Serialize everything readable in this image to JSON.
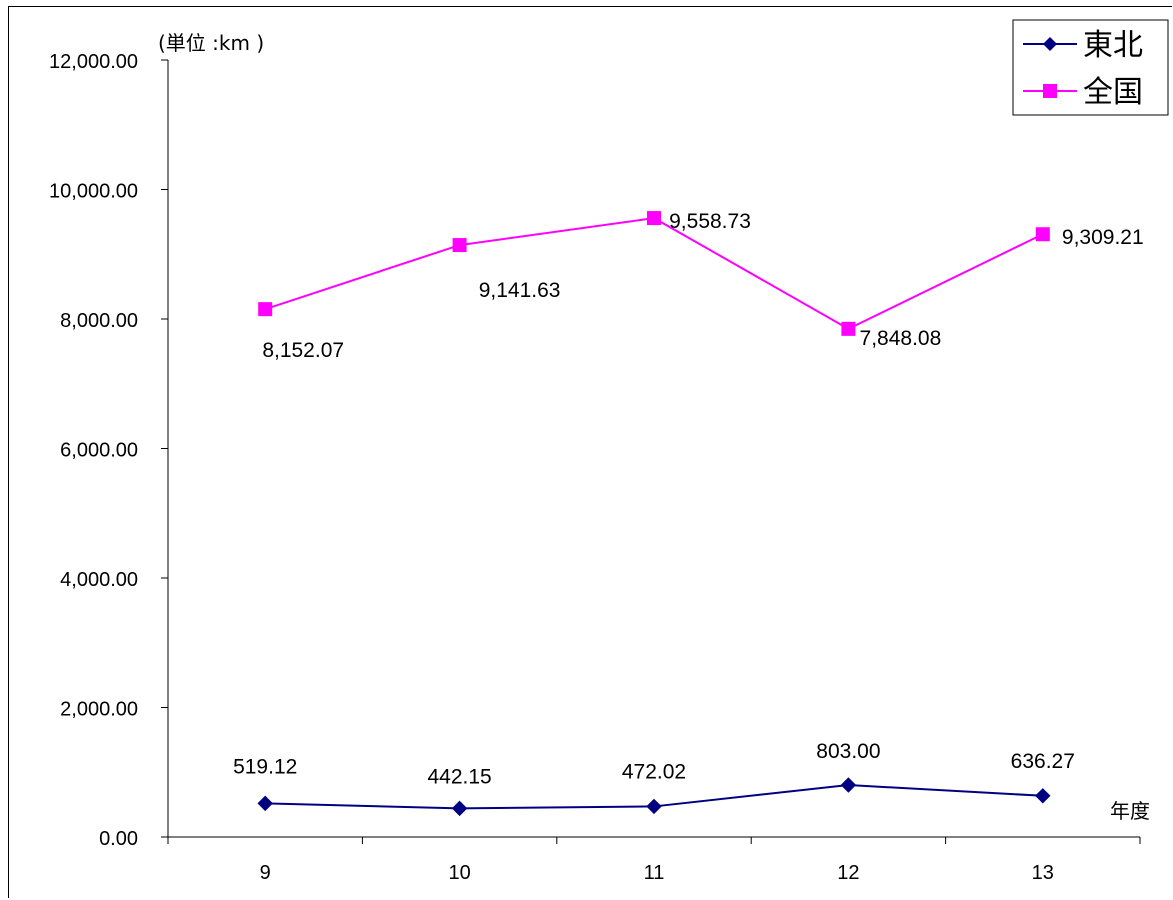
{
  "chart_data": {
    "type": "line",
    "unit_label": "(単位 :km )",
    "xlabel": "年度",
    "categories": [
      "9",
      "10",
      "11",
      "12",
      "13"
    ],
    "ylim": [
      0,
      12000
    ],
    "y_ticks": [
      "0.00",
      "2,000.00",
      "4,000.00",
      "6,000.00",
      "8,000.00",
      "10,000.00",
      "12,000.00"
    ],
    "grid": false,
    "legend_position": "top-right",
    "series": [
      {
        "name": "東北",
        "values": [
          519.12,
          442.15,
          472.02,
          803.0,
          636.27
        ],
        "labels": [
          "519.12",
          "442.15",
          "472.02",
          "803.00",
          "636.27"
        ],
        "color": "#000080",
        "marker": "diamond"
      },
      {
        "name": "全国",
        "values": [
          8152.07,
          9141.63,
          9558.73,
          7848.08,
          9309.21
        ],
        "labels": [
          "8,152.07",
          "9,141.63",
          "9,558.73",
          "7,848.08",
          "9,309.21"
        ],
        "color": "#ff00ff",
        "marker": "square"
      }
    ]
  }
}
